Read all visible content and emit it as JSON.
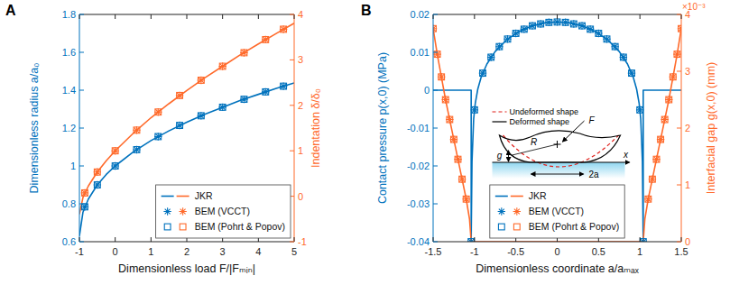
{
  "chart_data": [
    {
      "type": "line",
      "label": "A",
      "xlabel": "Dimensionless load F/|Fₘᵢₙ|",
      "ylabel": "Dimensionless radius a/a₀",
      "y2label": "Indentation δ/δ₀",
      "xlim": [
        -1,
        5
      ],
      "xticks": [
        -1,
        0,
        1,
        2,
        3,
        4,
        5
      ],
      "ylim": [
        0.6,
        1.8
      ],
      "yticks": [
        0.6,
        0.8,
        1,
        1.2,
        1.4,
        1.6,
        1.8
      ],
      "y2lim": [
        -1,
        4
      ],
      "y2ticks": [
        -1,
        0,
        1,
        2,
        3,
        4
      ],
      "legend": "lower right",
      "series": [
        {
          "name": "JKR",
          "type": "line",
          "line_style": "solid",
          "color": "#0072BD",
          "axis": "y",
          "x": [
            -1,
            -0.9,
            -0.75,
            -0.5,
            -0.25,
            0,
            0.5,
            1,
            1.5,
            2,
            2.5,
            3,
            3.5,
            4,
            4.5,
            5
          ],
          "values": [
            0.63,
            0.756,
            0.825,
            0.9,
            0.955,
            1,
            1.073,
            1.134,
            1.185,
            1.231,
            1.273,
            1.31,
            1.346,
            1.378,
            1.409,
            1.438
          ]
        },
        {
          "name": "JKR",
          "type": "line",
          "line_style": "solid",
          "color": "#FF6A2B",
          "axis": "y2",
          "x": [
            -1,
            -0.9,
            -0.75,
            -0.5,
            -0.25,
            0,
            0.5,
            1,
            1.5,
            2,
            2.5,
            3,
            3.5,
            4,
            4.5,
            5
          ],
          "values": [
            -0.396,
            -0.024,
            0.225,
            0.533,
            0.782,
            1,
            1.382,
            1.728,
            2.036,
            2.327,
            2.605,
            2.859,
            3.115,
            3.349,
            3.582,
            3.806
          ]
        },
        {
          "name": "BEM (VCCT)",
          "type": "scatter",
          "marker": "asterisk",
          "color": "#0072BD",
          "axis": "y",
          "x": [
            -0.85,
            -0.5,
            0,
            0.6,
            1.2,
            1.8,
            2.4,
            3,
            3.6,
            4.2,
            4.7
          ],
          "values": [
            0.784,
            0.9,
            1,
            1.086,
            1.155,
            1.214,
            1.265,
            1.31,
            1.352,
            1.391,
            1.421
          ]
        },
        {
          "name": "BEM (VCCT)",
          "type": "scatter",
          "marker": "asterisk",
          "color": "#FF6A2B",
          "axis": "y2",
          "x": [
            -0.85,
            -0.5,
            0,
            0.6,
            1.2,
            1.8,
            2.4,
            3,
            3.6,
            4.2,
            4.7
          ],
          "values": [
            0.073,
            0.533,
            1,
            1.454,
            1.853,
            2.217,
            2.552,
            2.859,
            3.158,
            3.446,
            3.674
          ]
        },
        {
          "name": "BEM (Pohrt & Popov)",
          "type": "scatter",
          "marker": "square",
          "color": "#0072BD",
          "axis": "y",
          "x": [
            -0.85,
            -0.5,
            0,
            0.6,
            1.2,
            1.8,
            2.4,
            3,
            3.6,
            4.2,
            4.7
          ],
          "values": [
            0.784,
            0.9,
            1,
            1.086,
            1.155,
            1.214,
            1.265,
            1.31,
            1.352,
            1.391,
            1.421
          ]
        },
        {
          "name": "BEM (Pohrt & Popov)",
          "type": "scatter",
          "marker": "square",
          "color": "#FF6A2B",
          "axis": "y2",
          "x": [
            -0.85,
            -0.5,
            0,
            0.6,
            1.2,
            1.8,
            2.4,
            3,
            3.6,
            4.2,
            4.7
          ],
          "values": [
            0.073,
            0.533,
            1,
            1.454,
            1.853,
            2.217,
            2.552,
            2.859,
            3.158,
            3.446,
            3.674
          ]
        }
      ]
    },
    {
      "type": "line",
      "label": "B",
      "xlabel": "Dimensionless coordinate a/aₘₐₓ",
      "ylabel": "Contact pressure p(x,0) (MPa)",
      "y2label": "Interfacial gap g(x,0) (mm)",
      "y2_exponent": "×10⁻³",
      "xlim": [
        -1.5,
        1.5
      ],
      "xticks": [
        -1.5,
        -1,
        -0.5,
        0,
        0.5,
        1,
        1.5
      ],
      "ylim": [
        -0.04,
        0.02
      ],
      "yticks": [
        -0.04,
        -0.03,
        -0.02,
        -0.01,
        0,
        0.01,
        0.02
      ],
      "y2lim": [
        0,
        4
      ],
      "y2ticks": [
        0,
        1,
        2,
        3,
        4
      ],
      "legend": "lower center",
      "inset": {
        "undeformed": "Undeformed shape",
        "deformed": "Deformed shape",
        "force": "F",
        "radius": "R",
        "gap": "g",
        "width": "2a",
        "coordinate": "x"
      },
      "series": [
        {
          "name": "JKR",
          "type": "line",
          "line_style": "solid",
          "color": "#0072BD",
          "axis": "y",
          "x": [
            -1.5,
            -1.04,
            -1.04,
            -1.03,
            -1.01,
            -0.99,
            -0.96,
            -0.92,
            -0.85,
            -0.75,
            -0.6,
            -0.45,
            -0.3,
            -0.15,
            0,
            0.15,
            0.3,
            0.45,
            0.6,
            0.75,
            0.85,
            0.92,
            0.96,
            0.99,
            1.01,
            1.03,
            1.04,
            1.04,
            1.5
          ],
          "values": [
            0,
            0,
            -0.04,
            -0.0188,
            -0.0076,
            -0.0034,
            0.0003,
            0.0034,
            0.0069,
            0.0102,
            0.0135,
            0.0156,
            0.017,
            0.0178,
            0.018,
            0.0178,
            0.017,
            0.0156,
            0.0135,
            0.0102,
            0.0069,
            0.0034,
            0.0003,
            -0.0034,
            -0.0076,
            -0.0188,
            -0.04,
            0,
            0
          ]
        },
        {
          "name": "JKR",
          "type": "line",
          "line_style": "solid",
          "color": "#FF6A2B",
          "axis": "y2",
          "x": [
            -1.5,
            -1.45,
            -1.4,
            -1.35,
            -1.3,
            -1.25,
            -1.2,
            -1.15,
            -1.1,
            -1.06,
            -1.04,
            1.04,
            1.06,
            1.1,
            1.15,
            1.2,
            1.25,
            1.3,
            1.35,
            1.4,
            1.45,
            1.5
          ],
          "values": [
            3.75,
            3.3,
            2.9,
            2.5,
            2.15,
            1.8,
            1.45,
            1.1,
            0.75,
            0.4,
            0,
            0,
            0.4,
            0.75,
            1.1,
            1.45,
            1.8,
            2.15,
            2.5,
            2.9,
            3.3,
            3.75
          ]
        },
        {
          "name": "BEM (VCCT)",
          "type": "scatter",
          "marker": "asterisk",
          "color": "#0072BD",
          "axis": "y",
          "x": [
            -1.04,
            -1,
            -0.9,
            -0.8,
            -0.7,
            -0.6,
            -0.5,
            -0.4,
            -0.3,
            -0.2,
            -0.1,
            0,
            0.1,
            0.2,
            0.3,
            0.4,
            0.5,
            0.6,
            0.7,
            0.8,
            0.9,
            1,
            1.04
          ],
          "values": [
            -0.04,
            -0.0052,
            0.0045,
            0.0087,
            0.0115,
            0.0135,
            0.015,
            0.0161,
            0.017,
            0.0175,
            0.0179,
            0.018,
            0.0179,
            0.0175,
            0.017,
            0.0161,
            0.015,
            0.0135,
            0.0115,
            0.0087,
            0.0045,
            -0.0052,
            -0.04
          ]
        },
        {
          "name": "BEM (VCCT)",
          "type": "scatter",
          "marker": "asterisk",
          "color": "#FF6A2B",
          "axis": "y2",
          "x": [
            -1.5,
            -1.45,
            -1.4,
            -1.35,
            -1.3,
            -1.25,
            -1.2,
            -1.15,
            -1.1,
            1.1,
            1.15,
            1.2,
            1.25,
            1.3,
            1.35,
            1.4,
            1.45,
            1.5
          ],
          "values": [
            3.75,
            3.3,
            2.9,
            2.5,
            2.15,
            1.8,
            1.45,
            1.1,
            0.75,
            0.75,
            1.1,
            1.45,
            1.8,
            2.15,
            2.5,
            2.9,
            3.3,
            3.75
          ]
        },
        {
          "name": "BEM (Pohrt & Popov)",
          "type": "scatter",
          "marker": "square",
          "color": "#0072BD",
          "axis": "y",
          "x": [
            -1.04,
            -1,
            -0.9,
            -0.8,
            -0.7,
            -0.6,
            -0.5,
            -0.4,
            -0.3,
            -0.2,
            -0.1,
            0,
            0.1,
            0.2,
            0.3,
            0.4,
            0.5,
            0.6,
            0.7,
            0.8,
            0.9,
            1,
            1.04
          ],
          "values": [
            -0.04,
            -0.0052,
            0.0045,
            0.0087,
            0.0115,
            0.0135,
            0.015,
            0.0161,
            0.017,
            0.0175,
            0.0179,
            0.018,
            0.0179,
            0.0175,
            0.017,
            0.0161,
            0.015,
            0.0135,
            0.0115,
            0.0087,
            0.0045,
            -0.0052,
            -0.04
          ]
        },
        {
          "name": "BEM (Pohrt & Popov)",
          "type": "scatter",
          "marker": "square",
          "color": "#FF6A2B",
          "axis": "y2",
          "x": [
            -1.5,
            -1.45,
            -1.4,
            -1.35,
            -1.3,
            -1.25,
            -1.2,
            -1.15,
            -1.1,
            1.1,
            1.15,
            1.2,
            1.25,
            1.3,
            1.35,
            1.4,
            1.45,
            1.5
          ],
          "values": [
            3.75,
            3.3,
            2.9,
            2.5,
            2.15,
            1.8,
            1.45,
            1.1,
            0.75,
            0.75,
            1.1,
            1.45,
            1.8,
            2.15,
            2.5,
            2.9,
            3.3,
            3.75
          ]
        }
      ]
    }
  ]
}
